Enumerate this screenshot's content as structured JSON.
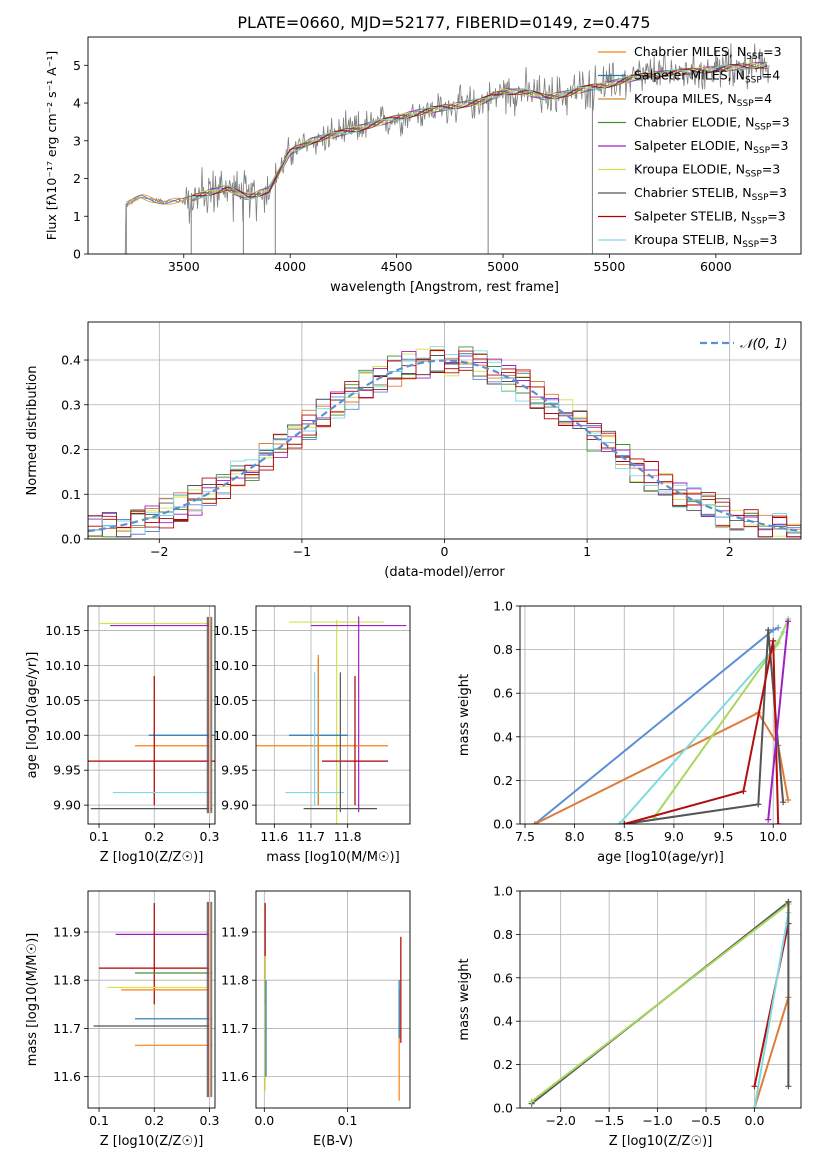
{
  "figure_title": "PLATE=0660, MJD=52177, FIBERID=0149, z=0.475",
  "colors": {
    "cM": "#ff7f0e",
    "sM": "#1f77b4",
    "kM": "#d08a2a",
    "cE": "#4b8e3a",
    "sE": "#a020c8",
    "kE": "#d8e04a",
    "cS": "#555555",
    "sS": "#b00000",
    "kS": "#7fd6e6",
    "fit_blue": "#5b8fd6",
    "fit_orange": "#e07b39",
    "fit_cyan": "#7fdbe0",
    "fit_green": "#a8d860",
    "fit_gray": "#555555",
    "fit_red": "#b01010",
    "data_gray": "#808080",
    "normal": "#5b8fd6"
  },
  "legend_spectrum": [
    {
      "label": "Chabrier MILES, N",
      "sub": "SSP",
      "tail": "=3",
      "color_key": "cM"
    },
    {
      "label": "Salpeter MILES, N",
      "sub": "SSP",
      "tail": "=4",
      "color_key": "sM"
    },
    {
      "label": "Kroupa MILES, N",
      "sub": "SSP",
      "tail": "=4",
      "color_key": "kM"
    },
    {
      "label": "Chabrier ELODIE, N",
      "sub": "SSP",
      "tail": "=3",
      "color_key": "cE"
    },
    {
      "label": "Salpeter ELODIE, N",
      "sub": "SSP",
      "tail": "=3",
      "color_key": "sE"
    },
    {
      "label": "Kroupa ELODIE, N",
      "sub": "SSP",
      "tail": "=3",
      "color_key": "kE"
    },
    {
      "label": "Chabrier STELIB, N",
      "sub": "SSP",
      "tail": "=3",
      "color_key": "cS"
    },
    {
      "label": "Salpeter STELIB, N",
      "sub": "SSP",
      "tail": "=3",
      "color_key": "sS"
    },
    {
      "label": "Kroupa STELIB, N",
      "sub": "SSP",
      "tail": "=3",
      "color_key": "kS"
    }
  ],
  "legend_hist": "𝒩(0, 1)",
  "chart_data": [
    {
      "id": "spectrum",
      "type": "line",
      "xlabel": "wavelength [Angstrom, rest frame]",
      "ylabel": "Flux [fλ10⁻¹⁷ erg cm⁻² s⁻¹ A⁻¹]",
      "xlim": [
        3050,
        6400
      ],
      "ylim": [
        0,
        5.75
      ],
      "xticks": [
        3500,
        4000,
        4500,
        5000,
        5500,
        6000
      ],
      "yticks": [
        0,
        1,
        2,
        3,
        4,
        5
      ],
      "continuum_x": [
        3230,
        3300,
        3400,
        3500,
        3600,
        3700,
        3800,
        3900,
        4000,
        4100,
        4200,
        4300,
        4400,
        4500,
        4600,
        4700,
        4800,
        4900,
        5000,
        5100,
        5200,
        5300,
        5400,
        5500,
        5600,
        5700,
        5800,
        5900,
        6000,
        6100,
        6200
      ],
      "continuum_y": [
        1.3,
        1.5,
        1.4,
        1.4,
        1.6,
        1.75,
        1.5,
        1.7,
        2.7,
        3.0,
        3.15,
        3.3,
        3.45,
        3.6,
        3.75,
        3.85,
        3.95,
        4.05,
        4.3,
        4.3,
        4.15,
        4.25,
        4.4,
        4.5,
        4.65,
        4.75,
        4.8,
        4.85,
        4.9,
        4.95,
        5.0
      ]
    },
    {
      "id": "residuals",
      "type": "line",
      "xlabel": "(data-model)/error",
      "ylabel": "Normed distribution",
      "xlim": [
        -2.5,
        2.5
      ],
      "ylim": [
        0,
        0.485
      ],
      "xticks": [
        -2,
        -1,
        0,
        1,
        2
      ],
      "yticks": [
        0.0,
        0.1,
        0.2,
        0.3,
        0.4
      ],
      "normal_series": {
        "name": "𝒩(0, 1)",
        "mean": 0,
        "sigma": 1
      }
    },
    {
      "id": "age_vs_Z",
      "type": "scatter",
      "xlabel": "Z [log10(Z/Z☉)]",
      "ylabel": "age [log10(age/yr)]",
      "xlim": [
        0.08,
        0.31
      ],
      "ylim": [
        9.873,
        10.185
      ],
      "xticks": [
        0.1,
        0.2,
        0.3
      ],
      "yticks": [
        9.9,
        9.95,
        10.0,
        10.05,
        10.1,
        10.15
      ],
      "points": [
        {
          "x": 0.2,
          "xerr": 0.1,
          "y": 10.16,
          "color_key": "kE"
        },
        {
          "x": 0.21,
          "xerr": 0.09,
          "y": 10.157,
          "color_key": "sE"
        },
        {
          "x": 0.25,
          "xerr": 0.06,
          "y": 10.0,
          "color_key": "sM"
        },
        {
          "x": 0.235,
          "xerr": 0.07,
          "y": 9.985,
          "color_key": "cM"
        },
        {
          "x": 0.2,
          "xerr": 0.14,
          "y": 9.963,
          "ylo": 9.9,
          "yhi": 10.085,
          "color_key": "sS"
        },
        {
          "x": 0.215,
          "xerr": 0.09,
          "y": 9.918,
          "color_key": "kS"
        },
        {
          "x": 0.195,
          "xerr": 0.11,
          "y": 9.895,
          "color_key": "cS"
        }
      ]
    },
    {
      "id": "age_vs_mass",
      "type": "scatter",
      "xlabel": "mass [log10(M/M☉)]",
      "ylabel": "",
      "xlim": [
        11.55,
        11.97
      ],
      "ylim": [
        9.873,
        10.185
      ],
      "xticks": [
        11.6,
        11.7,
        11.8
      ],
      "yticks": [
        9.9,
        9.95,
        10.0,
        10.05,
        10.1,
        10.15
      ],
      "points": [
        {
          "x": 11.77,
          "xerr": 0.13,
          "y": 10.162,
          "ylo": 9.87,
          "yhi": 10.165,
          "color_key": "kE"
        },
        {
          "x": 11.83,
          "xerr": 0.13,
          "y": 10.157,
          "ylo": 9.89,
          "yhi": 10.17,
          "color_key": "sE"
        },
        {
          "x": 11.72,
          "xerr": 0.08,
          "y": 10.0,
          "ylo": 9.9,
          "yhi": 10.11,
          "color_key": "sM"
        },
        {
          "x": 11.72,
          "xerr": 0.19,
          "y": 9.985,
          "ylo": 9.9,
          "yhi": 10.115,
          "color_key": "cM"
        },
        {
          "x": 11.82,
          "xerr": 0.09,
          "y": 9.963,
          "ylo": 9.9,
          "yhi": 10.085,
          "color_key": "sS"
        },
        {
          "x": 11.71,
          "xerr": 0.08,
          "y": 9.918,
          "ylo": 9.9,
          "yhi": 10.09,
          "color_key": "kS"
        },
        {
          "x": 11.78,
          "xerr": 0.1,
          "y": 9.895,
          "ylo": 9.89,
          "yhi": 10.09,
          "color_key": "cS"
        }
      ]
    },
    {
      "id": "weight_vs_age",
      "type": "line",
      "xlabel": "age  [log10(age/yr)]",
      "ylabel": "mass weight",
      "xlim": [
        7.45,
        10.28
      ],
      "ylim": [
        0,
        1.0
      ],
      "xticks": [
        7.5,
        8.0,
        8.5,
        9.0,
        9.5,
        10.0
      ],
      "yticks": [
        0.0,
        0.2,
        0.4,
        0.6,
        0.8,
        1.0
      ],
      "series": [
        {
          "color_key": "fit_blue",
          "x": [
            7.6,
            10.0,
            10.05
          ],
          "y": [
            0.0,
            0.89,
            0.9
          ]
        },
        {
          "color_key": "fit_orange",
          "x": [
            7.6,
            9.85,
            10.05,
            10.15
          ],
          "y": [
            0.0,
            0.51,
            0.36,
            0.11
          ]
        },
        {
          "color_key": "fit_cyan",
          "x": [
            8.45,
            10.0,
            10.1
          ],
          "y": [
            0.0,
            0.8,
            0.88
          ]
        },
        {
          "color_key": "fit_green",
          "x": [
            8.8,
            10.05,
            10.15
          ],
          "y": [
            0.03,
            0.83,
            0.94
          ]
        },
        {
          "color_key": "fit_gray",
          "x": [
            8.5,
            9.85,
            9.95,
            10.1
          ],
          "y": [
            0.0,
            0.09,
            0.89,
            0.1
          ]
        },
        {
          "color_key": "fit_red",
          "x": [
            8.5,
            9.7,
            10.0,
            10.05
          ],
          "y": [
            0.0,
            0.15,
            0.84,
            0.0
          ]
        },
        {
          "color_key": "sE",
          "x": [
            9.95,
            10.15
          ],
          "y": [
            0.02,
            0.93
          ]
        }
      ]
    },
    {
      "id": "mass_vs_Z",
      "type": "scatter",
      "xlabel": "Z [log10(Z/Z☉)]",
      "ylabel": "mass [log10(M/M☉)]",
      "xlim": [
        0.08,
        0.31
      ],
      "ylim": [
        11.535,
        11.985
      ],
      "xticks": [
        0.1,
        0.2,
        0.3
      ],
      "yticks": [
        11.6,
        11.7,
        11.8,
        11.9
      ],
      "points": [
        {
          "x": 0.215,
          "xerr": 0.085,
          "y": 11.895,
          "color_key": "sE"
        },
        {
          "x": 0.2,
          "xerr": 0.1,
          "y": 11.825,
          "ylo": 11.75,
          "yhi": 11.96,
          "color_key": "sS"
        },
        {
          "x": 0.235,
          "xerr": 0.07,
          "y": 11.815,
          "color_key": "cE"
        },
        {
          "x": 0.205,
          "xerr": 0.09,
          "y": 11.785,
          "color_key": "kE"
        },
        {
          "x": 0.22,
          "xerr": 0.08,
          "y": 11.78,
          "color_key": "cM"
        },
        {
          "x": 0.235,
          "xerr": 0.07,
          "y": 11.72,
          "color_key": "sM"
        },
        {
          "x": 0.195,
          "xerr": 0.105,
          "y": 11.705,
          "color_key": "cS"
        },
        {
          "x": 0.235,
          "xerr": 0.07,
          "y": 11.665,
          "color_key": "cM"
        }
      ]
    },
    {
      "id": "mass_vs_EBV",
      "type": "scatter",
      "xlabel": "E(B-V)",
      "ylabel": "",
      "xlim": [
        -0.01,
        0.175
      ],
      "ylim": [
        11.535,
        11.985
      ],
      "xticks": [
        0.0,
        0.1
      ],
      "yticks": [
        11.6,
        11.7,
        11.8,
        11.9
      ],
      "points": [
        {
          "x": 0.001,
          "ylo": 11.75,
          "yhi": 11.96,
          "color_key": "sS"
        },
        {
          "x": 0.001,
          "ylo": 11.57,
          "yhi": 11.85,
          "color_key": "kE"
        },
        {
          "x": 0.002,
          "ylo": 11.6,
          "yhi": 11.8,
          "color_key": "sM"
        },
        {
          "x": 0.162,
          "ylo": 11.55,
          "yhi": 11.78,
          "color_key": "cM"
        },
        {
          "x": 0.164,
          "ylo": 11.67,
          "yhi": 11.89,
          "color_key": "sS"
        },
        {
          "x": 0.162,
          "ylo": 11.68,
          "yhi": 11.8,
          "color_key": "sM"
        }
      ]
    },
    {
      "id": "weight_vs_Z",
      "type": "line",
      "xlabel": "Z [log10(Z/Z☉)]",
      "ylabel": "mass weight",
      "xlim": [
        -2.42,
        0.48
      ],
      "ylim": [
        0,
        1.0
      ],
      "xticks": [
        -2.0,
        -1.5,
        -1.0,
        -0.5,
        0.0
      ],
      "yticks": [
        0.0,
        0.2,
        0.4,
        0.6,
        0.8,
        1.0
      ],
      "series": [
        {
          "color_key": "fit_gray",
          "x": [
            -2.3,
            0.35
          ],
          "y": [
            0.02,
            0.95
          ]
        },
        {
          "color_key": "fit_green",
          "x": [
            -2.3,
            0.35
          ],
          "y": [
            0.03,
            0.94
          ]
        },
        {
          "color_key": "fit_red",
          "x": [
            0.0,
            0.35
          ],
          "y": [
            0.1,
            0.85
          ]
        },
        {
          "color_key": "fit_orange",
          "x": [
            0.0,
            0.35
          ],
          "y": [
            0.0,
            0.51
          ]
        },
        {
          "color_key": "fit_cyan",
          "x": [
            0.0,
            0.35
          ],
          "y": [
            0.0,
            0.9
          ]
        },
        {
          "color_key": "fit_gray",
          "x": [
            0.35,
            0.35
          ],
          "y": [
            0.1,
            0.95
          ]
        }
      ]
    }
  ]
}
